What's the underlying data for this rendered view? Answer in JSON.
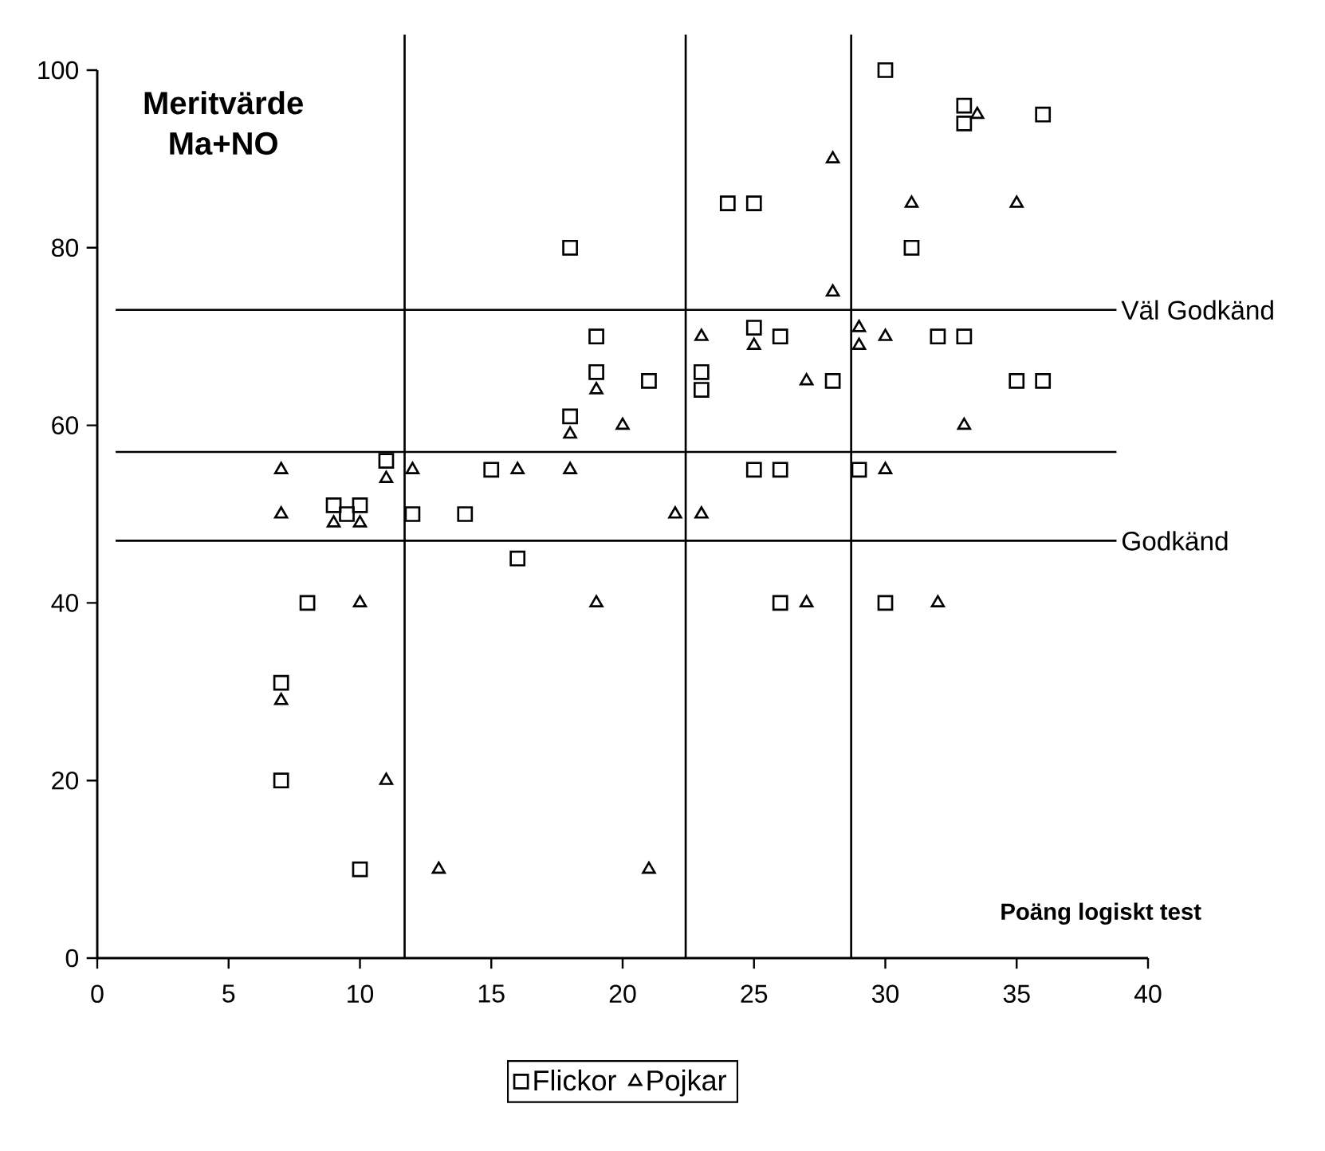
{
  "chart_data": {
    "type": "scatter",
    "xlabel": "Poäng logiskt test",
    "ylabel": "Meritvärde Ma+NO",
    "xlim": [
      0,
      40
    ],
    "ylim": [
      0,
      100
    ],
    "xticks": [
      0,
      5,
      10,
      15,
      20,
      25,
      30,
      35,
      40
    ],
    "yticks": [
      0,
      20,
      40,
      60,
      80,
      100
    ],
    "grid": false,
    "legend": "bottom",
    "series": [
      {
        "name": "Flickor",
        "color": "#000000",
        "marker": "square",
        "x": [
          7,
          7,
          8,
          9,
          9.5,
          10,
          10,
          11,
          12,
          14,
          15,
          16,
          18,
          18,
          19,
          19,
          21,
          23,
          23,
          24,
          25,
          25,
          25,
          26,
          26,
          26,
          28,
          29,
          30,
          30,
          31,
          32,
          33,
          33,
          33,
          35,
          36,
          36
        ],
        "values": [
          31,
          20,
          40,
          51,
          50,
          51,
          10,
          56,
          50,
          50,
          55,
          45,
          80,
          61,
          70,
          66,
          65,
          66,
          64,
          85,
          85,
          71,
          55,
          70,
          55,
          40,
          65,
          55,
          100,
          40,
          80,
          70,
          70,
          96,
          94,
          65,
          65,
          95
        ]
      },
      {
        "name": "Pojkar",
        "color": "#000000",
        "marker": "triangle",
        "x": [
          7,
          7,
          7,
          9,
          10,
          10,
          11,
          11,
          12,
          13,
          16,
          18,
          18,
          19,
          19,
          20,
          21,
          22,
          23,
          23,
          25,
          27,
          27,
          28,
          28,
          29,
          29,
          30,
          30,
          31,
          32,
          33,
          33.5,
          35
        ],
        "values": [
          55,
          50,
          29,
          49,
          49,
          40,
          54,
          20,
          55,
          10,
          55,
          55,
          59,
          64,
          40,
          60,
          10,
          50,
          50,
          70,
          69,
          65,
          40,
          90,
          75,
          71,
          69,
          70,
          55,
          85,
          40,
          60,
          95,
          85
        ]
      }
    ],
    "ref_lines": [
      {
        "axis": "y",
        "value": 73,
        "label": "Väl Godkänd"
      },
      {
        "axis": "y",
        "value": 57
      },
      {
        "axis": "y",
        "value": 47,
        "label": "Godkänd"
      },
      {
        "axis": "x",
        "value": 11.7
      },
      {
        "axis": "x",
        "value": 22.4
      },
      {
        "axis": "x",
        "value": 28.7
      }
    ]
  }
}
